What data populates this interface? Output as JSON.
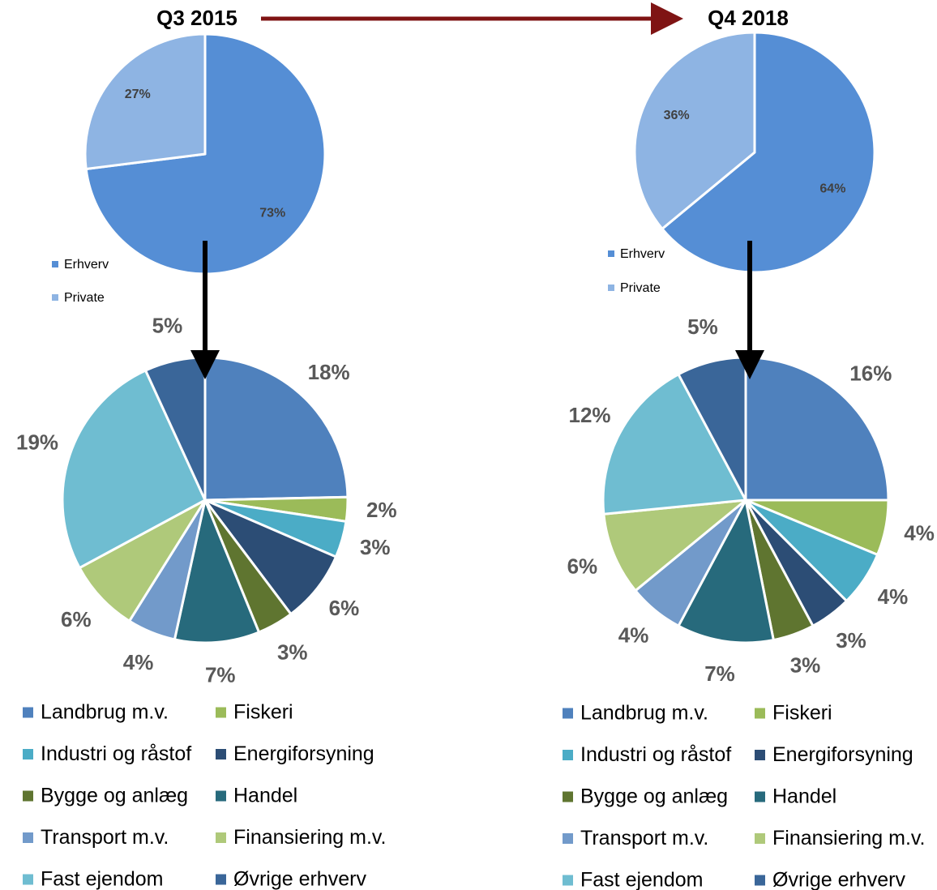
{
  "chart_data": [
    {
      "type": "pie",
      "title": "Q3 2015",
      "categories": [
        "Erhverv",
        "Private"
      ],
      "values": [
        73,
        27
      ],
      "value_labels": [
        "73%",
        "27%"
      ],
      "colors": [
        "#558ed5",
        "#8eb4e3"
      ]
    },
    {
      "type": "pie",
      "title": "Q4 2018",
      "categories": [
        "Erhverv",
        "Private"
      ],
      "values": [
        64,
        36
      ],
      "value_labels": [
        "64%",
        "36%"
      ],
      "colors": [
        "#558ed5",
        "#8eb4e3"
      ]
    },
    {
      "type": "pie",
      "categories": [
        "Landbrug m.v.",
        "Fiskeri",
        "Industri og råstof",
        "Energiforsyning",
        "Bygge og anlæg",
        "Handel",
        "Transport m.v.",
        "Finansiering m.v.",
        "Fast ejendom",
        "Øvrige erhverv"
      ],
      "values": [
        18,
        2,
        3,
        6,
        3,
        7,
        4,
        6,
        19,
        5
      ],
      "value_labels": [
        "18%",
        "2%",
        "3%",
        "6%",
        "3%",
        "7%",
        "4%",
        "6%",
        "19%",
        "5%"
      ],
      "colors": [
        "#4f81bd",
        "#9bbb59",
        "#4bacc6",
        "#2c4d75",
        "#5f7530",
        "#276a7c",
        "#729aca",
        "#afc97a",
        "#6fbdd1",
        "#3a6699"
      ]
    },
    {
      "type": "pie",
      "categories": [
        "Landbrug m.v.",
        "Fiskeri",
        "Industri og råstof",
        "Energiforsyning",
        "Bygge og anlæg",
        "Handel",
        "Transport m.v.",
        "Finansiering m.v.",
        "Fast ejendom",
        "Øvrige erhverv"
      ],
      "values": [
        16,
        4,
        4,
        3,
        3,
        7,
        4,
        6,
        12,
        5
      ],
      "value_labels": [
        "16%",
        "4%",
        "4%",
        "3%",
        "3%",
        "7%",
        "4%",
        "6%",
        "12%",
        "5%"
      ],
      "colors": [
        "#4f81bd",
        "#9bbb59",
        "#4bacc6",
        "#2c4d75",
        "#5f7530",
        "#276a7c",
        "#729aca",
        "#afc97a",
        "#6fbdd1",
        "#3a6699"
      ]
    }
  ]
}
